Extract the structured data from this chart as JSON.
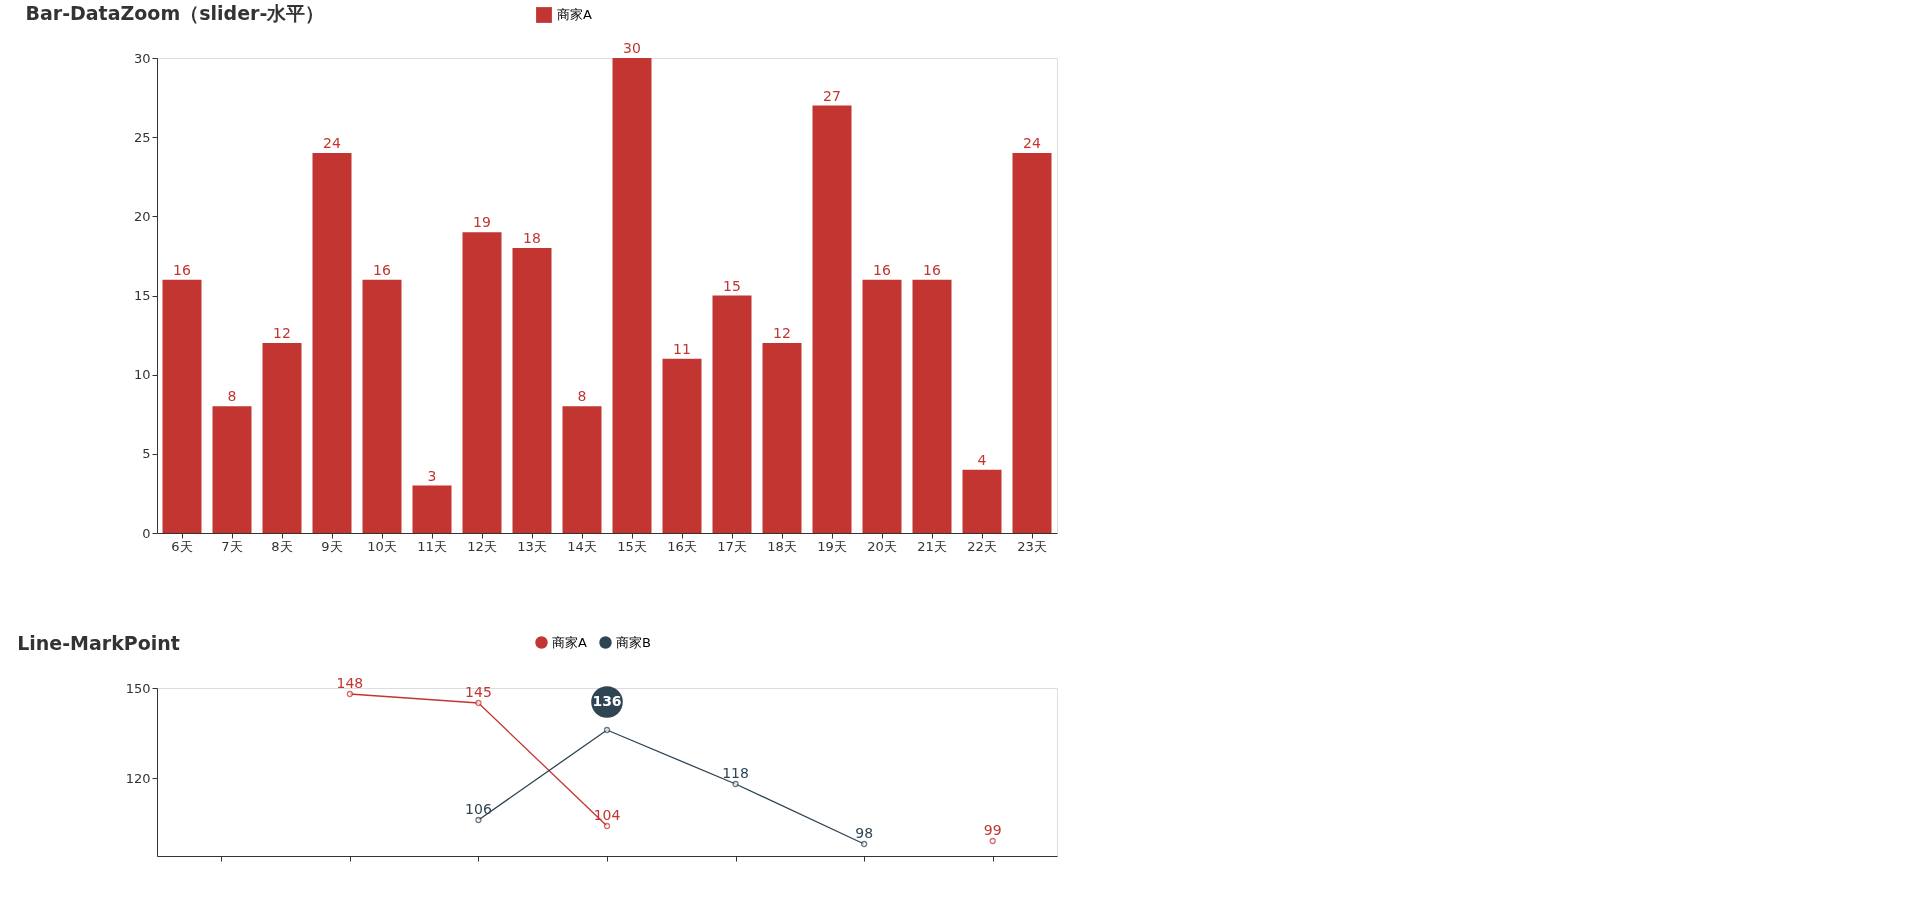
{
  "chart_data": [
    {
      "type": "bar",
      "title": "Bar-DataZoom（slider-水平）",
      "categories": [
        "6天",
        "7天",
        "8天",
        "9天",
        "10天",
        "11天",
        "12天",
        "13天",
        "14天",
        "15天",
        "16天",
        "17天",
        "18天",
        "19天",
        "20天",
        "21天",
        "22天",
        "23天"
      ],
      "series": [
        {
          "name": "商家A",
          "color": "#c23531",
          "values": [
            16,
            8,
            12,
            24,
            16,
            3,
            19,
            18,
            8,
            30,
            11,
            15,
            12,
            27,
            16,
            16,
            4,
            24
          ]
        }
      ],
      "ylim": [
        0,
        30
      ],
      "yticks": [
        0,
        5,
        10,
        15,
        20,
        25,
        30
      ],
      "data_labels": true,
      "legend": "top",
      "grid": false
    },
    {
      "type": "line",
      "title": "Line-MarkPoint",
      "categories": [
        null,
        null,
        null,
        null,
        null,
        null,
        null
      ],
      "series": [
        {
          "name": "商家A",
          "color": "#c23531",
          "values": [
            null,
            148,
            145,
            104,
            null,
            null,
            99
          ]
        },
        {
          "name": "商家B",
          "color": "#2f4554",
          "values": [
            null,
            null,
            106,
            136,
            118,
            98,
            null
          ],
          "value_labels": [
            null,
            null,
            "106",
            null,
            "118",
            "98",
            null
          ]
        }
      ],
      "ylim": [
        94,
        150
      ],
      "yticks": [
        120,
        150
      ],
      "data_labels": true,
      "legend": "top",
      "grid": false,
      "marker": "circle",
      "line_style": "solid",
      "tick_labels": "y",
      "annotations": [
        {
          "text": "136",
          "y": 136
        }
      ]
    }
  ]
}
